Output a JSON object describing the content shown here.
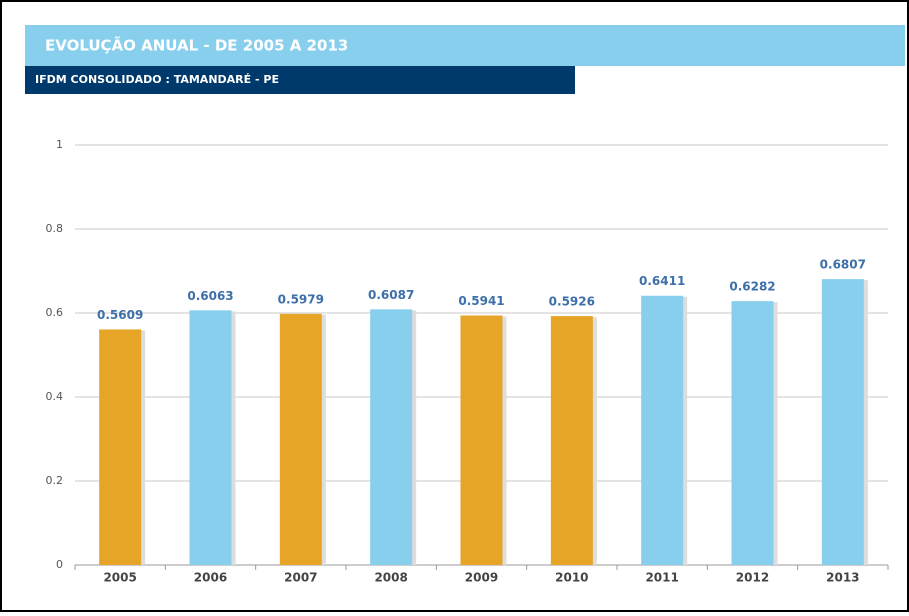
{
  "header": {
    "title": "EVOLUÇÃO ANUAL - DE 2005 A 2013",
    "subtitle": "IFDM CONSOLIDADO : TAMANDARÉ - PE"
  },
  "chart_data": {
    "type": "bar",
    "categories": [
      "2005",
      "2006",
      "2007",
      "2008",
      "2009",
      "2010",
      "2011",
      "2012",
      "2013"
    ],
    "values": [
      0.5609,
      0.6063,
      0.5979,
      0.6087,
      0.5941,
      0.5926,
      0.6411,
      0.6282,
      0.6807
    ],
    "colors": [
      "#e6a526",
      "#88cfee",
      "#e6a526",
      "#88cfee",
      "#e6a526",
      "#e6a526",
      "#88cfee",
      "#88cfee",
      "#88cfee"
    ],
    "ylim": [
      0,
      1
    ],
    "yticks": [
      0,
      0.2,
      0.4,
      0.6,
      0.8,
      1
    ],
    "grid": true
  }
}
